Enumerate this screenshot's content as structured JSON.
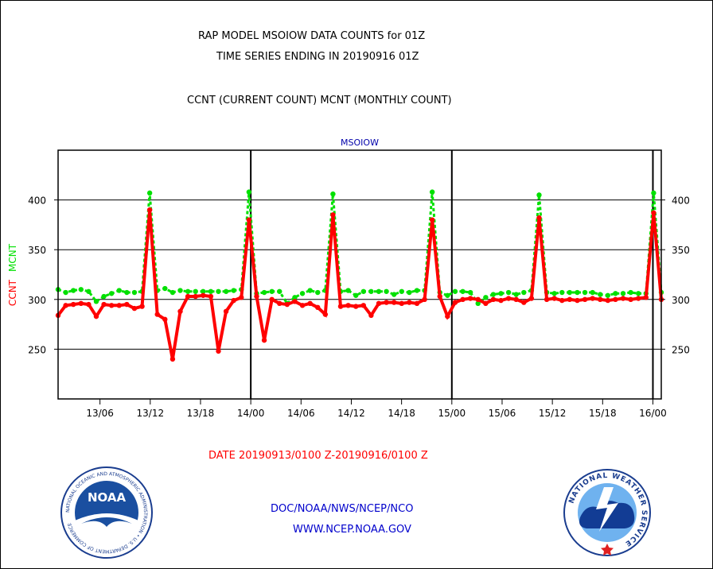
{
  "header": {
    "title_line1": "RAP MODEL MSOIOW DATA COUNTS for 01Z",
    "title_line2": "TIME SERIES ENDING IN 20190916 01Z",
    "subtitle": "CCNT (CURRENT COUNT) MCNT (MONTHLY COUNT)"
  },
  "footer": {
    "date_range": "DATE 20190913/0100 Z-20190916/0100 Z",
    "org": "DOC/NOAA/NWS/NCEP/NCO",
    "url": "WWW.NCEP.NOAA.GOV",
    "noaa_logo_text": "NOAA",
    "noaa_ring_text": "NATIONAL OCEANIC AND ATMOSPHERIC ADMINISTRATION • U.S. DEPARTMENT OF COMMERCE",
    "nws_ring_text": "NATIONAL WEATHER SERVICE"
  },
  "colors": {
    "ccnt": "#ff0000",
    "mcnt": "#00e000",
    "title": "#000000",
    "link": "#0000cc"
  },
  "chart_data": {
    "type": "line",
    "title": "MSOIOW",
    "ylabel_parts": [
      "CCNT",
      "MCNT"
    ],
    "ylim": [
      200,
      450
    ],
    "yticks": [
      250,
      300,
      350,
      400
    ],
    "x_range_hours": [
      0,
      72
    ],
    "xticks": [
      {
        "hour": 5,
        "label": "13/06"
      },
      {
        "hour": 11,
        "label": "13/12"
      },
      {
        "hour": 17,
        "label": "13/18"
      },
      {
        "hour": 23,
        "label": "14/00"
      },
      {
        "hour": 29,
        "label": "14/06"
      },
      {
        "hour": 35,
        "label": "14/12"
      },
      {
        "hour": 41,
        "label": "14/18"
      },
      {
        "hour": 47,
        "label": "15/00"
      },
      {
        "hour": 53,
        "label": "15/06"
      },
      {
        "hour": 59,
        "label": "15/12"
      },
      {
        "hour": 65,
        "label": "15/18"
      },
      {
        "hour": 71,
        "label": "16/00"
      }
    ],
    "day_boundaries_hours": [
      23,
      47,
      71
    ],
    "grid": "horizontal",
    "series": [
      {
        "name": "CCNT",
        "values": [
          284,
          294,
          295,
          296,
          295,
          283,
          295,
          294,
          294,
          295,
          291,
          293,
          390,
          285,
          280,
          240,
          288,
          303,
          303,
          304,
          303,
          248,
          288,
          299,
          302,
          380,
          303,
          259,
          300,
          296,
          295,
          298,
          294,
          296,
          292,
          285,
          385,
          293,
          294,
          293,
          294,
          284,
          296,
          297,
          297,
          296,
          297,
          296,
          300,
          380,
          303,
          283,
          297,
          300,
          301,
          300,
          296,
          300,
          299,
          301,
          300,
          297,
          301,
          382,
          300,
          301,
          299,
          300,
          299,
          300,
          301,
          300,
          299,
          300,
          301,
          300,
          301,
          302,
          387,
          300
        ]
      },
      {
        "name": "MCNT",
        "values": [
          310,
          307,
          309,
          310,
          308,
          298,
          303,
          306,
          309,
          307,
          307,
          308,
          407,
          309,
          311,
          307,
          309,
          308,
          308,
          308,
          308,
          308,
          308,
          309,
          310,
          408,
          306,
          307,
          308,
          308,
          296,
          302,
          306,
          309,
          307,
          309,
          406,
          308,
          309,
          304,
          308,
          308,
          308,
          308,
          305,
          308,
          307,
          309,
          309,
          408,
          307,
          304,
          308,
          308,
          307,
          296,
          302,
          305,
          306,
          307,
          305,
          307,
          309,
          405,
          307,
          306,
          307,
          307,
          307,
          307,
          307,
          305,
          304,
          306,
          306,
          307,
          306,
          306,
          407,
          307
        ]
      }
    ]
  }
}
